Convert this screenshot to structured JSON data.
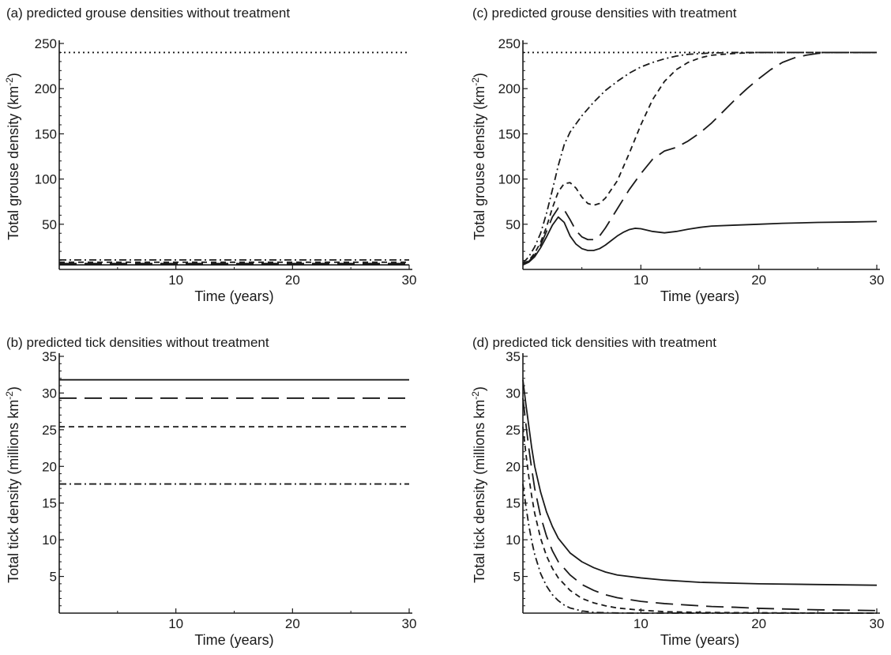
{
  "chart_data": [
    {
      "panel": "a",
      "type": "line",
      "title": "(a) predicted grouse densities without treatment",
      "xlabel": "Time (years)",
      "ylabel": "Total grouse density",
      "ylabel_unit_base": "(km",
      "ylabel_unit_sup": "-2",
      "ylabel_unit_end": ")",
      "xlim": [
        0,
        30
      ],
      "ylim": [
        0,
        250
      ],
      "xticks": [
        10,
        20,
        30
      ],
      "xticks_minor": [
        5,
        15,
        25
      ],
      "yticks": [
        50,
        100,
        150,
        200,
        250
      ],
      "yticks_minor": [
        10,
        20,
        30,
        40,
        60,
        70,
        80,
        90,
        110,
        120,
        130,
        140,
        160,
        170,
        180,
        190,
        210,
        220,
        230,
        240
      ],
      "series": [
        {
          "style": "dotted",
          "x": [
            0,
            30
          ],
          "y": [
            240,
            240
          ]
        },
        {
          "style": "dashdot",
          "x": [
            0,
            30
          ],
          "y": [
            10.5,
            10.5
          ]
        },
        {
          "style": "dashed",
          "x": [
            0,
            30
          ],
          "y": [
            8,
            8
          ]
        },
        {
          "style": "longdash",
          "x": [
            0,
            30
          ],
          "y": [
            6.5,
            6.5
          ]
        },
        {
          "style": "solid",
          "x": [
            0,
            30
          ],
          "y": [
            5,
            5
          ]
        }
      ]
    },
    {
      "panel": "c",
      "type": "line",
      "title": "(c) predicted grouse densities with treatment",
      "xlabel": "Time (years)",
      "ylabel": "Total grouse density",
      "ylabel_unit_base": "(km",
      "ylabel_unit_sup": "-2",
      "ylabel_unit_end": ")",
      "xlim": [
        0,
        30
      ],
      "ylim": [
        0,
        250
      ],
      "xticks": [
        10,
        20,
        30
      ],
      "xticks_minor": [
        5,
        15,
        25
      ],
      "yticks": [
        50,
        100,
        150,
        200,
        250
      ],
      "yticks_minor": [
        10,
        20,
        30,
        40,
        60,
        70,
        80,
        90,
        110,
        120,
        130,
        140,
        160,
        170,
        180,
        190,
        210,
        220,
        230,
        240
      ],
      "series": [
        {
          "style": "dotted",
          "x": [
            0,
            30
          ],
          "y": [
            240,
            240
          ]
        },
        {
          "style": "dashdot",
          "x": [
            0,
            0.5,
            1,
            1.5,
            2,
            2.5,
            3,
            3.5,
            4,
            5,
            6,
            7,
            8,
            9,
            10,
            11,
            12,
            13,
            14,
            16,
            18,
            20,
            25,
            30
          ],
          "y": [
            7,
            14,
            25,
            40,
            62,
            88,
            115,
            138,
            152,
            170,
            185,
            198,
            208,
            217,
            224,
            229,
            233,
            236,
            238,
            239.5,
            240,
            240,
            240,
            240
          ]
        },
        {
          "style": "dashed",
          "x": [
            0,
            0.5,
            1,
            1.5,
            2,
            2.5,
            3,
            3.5,
            4,
            4.5,
            5,
            5.5,
            6,
            6.5,
            7,
            8,
            9,
            10,
            11,
            12,
            13,
            14,
            15,
            16,
            18,
            20,
            25,
            30
          ],
          "y": [
            6,
            10,
            18,
            30,
            47,
            68,
            86,
            95,
            96,
            90,
            80,
            73,
            71,
            73,
            79,
            98,
            128,
            160,
            188,
            208,
            221,
            229,
            234,
            237,
            239,
            240,
            240,
            240
          ]
        },
        {
          "style": "longdash",
          "x": [
            0,
            0.5,
            1,
            1.5,
            2,
            2.5,
            3,
            3.5,
            4,
            4.5,
            5,
            5.5,
            6,
            6.5,
            7,
            8,
            9,
            10,
            11,
            12,
            13,
            14,
            15,
            16,
            17,
            18,
            19,
            20,
            21,
            22,
            23,
            24,
            25,
            26,
            28,
            30
          ],
          "y": [
            6,
            9,
            16,
            27,
            42,
            58,
            68,
            66,
            55,
            43,
            36,
            33,
            33,
            37,
            46,
            67,
            88,
            106,
            122,
            131,
            135,
            142,
            151,
            162,
            175,
            188,
            200,
            211,
            221,
            229,
            234,
            237,
            239,
            240,
            240,
            240
          ]
        },
        {
          "style": "solid",
          "x": [
            0,
            0.5,
            1,
            1.5,
            2,
            2.5,
            3,
            3.5,
            4,
            4.5,
            5,
            5.5,
            6,
            6.5,
            7,
            7.5,
            8,
            8.5,
            9,
            9.5,
            10,
            11,
            12,
            13,
            14,
            15,
            16,
            18,
            20,
            22,
            25,
            28,
            30
          ],
          "y": [
            5,
            8,
            14,
            24,
            36,
            49,
            58,
            52,
            37,
            28,
            23,
            21,
            21,
            23,
            27,
            32,
            37,
            41,
            44,
            45.5,
            45,
            42,
            40.5,
            42,
            44.5,
            46.5,
            48,
            49,
            50,
            51,
            52,
            52.5,
            53
          ]
        }
      ]
    },
    {
      "panel": "b",
      "type": "line",
      "title": "(b) predicted tick densities without treatment",
      "xlabel": "Time (years)",
      "ylabel": "Total tick density",
      "ylabel_unit_base": "(millions km",
      "ylabel_unit_sup": "-2",
      "ylabel_unit_end": ")",
      "xlim": [
        0,
        30
      ],
      "ylim": [
        0,
        35
      ],
      "xticks": [
        10,
        20,
        30
      ],
      "xticks_minor": [
        5,
        15,
        25
      ],
      "yticks": [
        5,
        10,
        15,
        20,
        25,
        30,
        35
      ],
      "yticks_minor": [
        1,
        2,
        3,
        4,
        6,
        7,
        8,
        9,
        11,
        12,
        13,
        14,
        16,
        17,
        18,
        19,
        21,
        22,
        23,
        24,
        26,
        27,
        28,
        29,
        31,
        32,
        33,
        34
      ],
      "series": [
        {
          "style": "solid",
          "x": [
            0,
            30
          ],
          "y": [
            31.8,
            31.8
          ]
        },
        {
          "style": "longdash",
          "x": [
            0,
            30
          ],
          "y": [
            29.3,
            29.3
          ]
        },
        {
          "style": "dashed",
          "x": [
            0,
            30
          ],
          "y": [
            25.4,
            25.4
          ]
        },
        {
          "style": "dashdot",
          "x": [
            0,
            30
          ],
          "y": [
            17.6,
            17.6
          ]
        }
      ]
    },
    {
      "panel": "d",
      "type": "line",
      "title": "(d) predicted tick densities with treatment",
      "xlabel": "Time (years)",
      "ylabel": "Total tick density",
      "ylabel_unit_base": "(millions km",
      "ylabel_unit_sup": "-2",
      "ylabel_unit_end": ")",
      "xlim": [
        0,
        30
      ],
      "ylim": [
        0,
        35
      ],
      "xticks": [
        10,
        20,
        30
      ],
      "xticks_minor": [
        5,
        15,
        25
      ],
      "yticks": [
        5,
        10,
        15,
        20,
        25,
        30,
        35
      ],
      "yticks_minor": [
        1,
        2,
        3,
        4,
        6,
        7,
        8,
        9,
        11,
        12,
        13,
        14,
        16,
        17,
        18,
        19,
        21,
        22,
        23,
        24,
        26,
        27,
        28,
        29,
        31,
        32,
        33,
        34
      ],
      "series": [
        {
          "style": "solid",
          "x": [
            0,
            0.25,
            0.5,
            0.75,
            1,
            1.5,
            2,
            2.5,
            3,
            4,
            5,
            6,
            7,
            8,
            10,
            12,
            15,
            20,
            25,
            30
          ],
          "y": [
            31.8,
            28.5,
            25.5,
            22.5,
            20,
            16.5,
            13.8,
            11.8,
            10.2,
            8.2,
            7,
            6.2,
            5.6,
            5.2,
            4.8,
            4.5,
            4.2,
            4,
            3.9,
            3.8
          ]
        },
        {
          "style": "longdash",
          "x": [
            0,
            0.25,
            0.5,
            0.75,
            1,
            1.5,
            2,
            2.5,
            3,
            4,
            5,
            6,
            7,
            8,
            10,
            12,
            14,
            16,
            18,
            20,
            25,
            30
          ],
          "y": [
            29.3,
            25.8,
            22.5,
            19.6,
            17,
            13.2,
            10.5,
            8.5,
            7,
            5.2,
            3.9,
            3.1,
            2.5,
            2.1,
            1.6,
            1.3,
            1.1,
            0.9,
            0.8,
            0.65,
            0.45,
            0.35
          ]
        },
        {
          "style": "dashed",
          "x": [
            0,
            0.25,
            0.5,
            0.75,
            1,
            1.5,
            2,
            2.5,
            3,
            4,
            5,
            6,
            7,
            8,
            10,
            12,
            15,
            20,
            25,
            30
          ],
          "y": [
            25.4,
            21.8,
            18.6,
            15.9,
            13.6,
            10.2,
            7.8,
            6.1,
            4.8,
            3.1,
            2,
            1.4,
            1,
            0.7,
            0.4,
            0.2,
            0.1,
            0.05,
            0.02,
            0
          ]
        },
        {
          "style": "dashdot",
          "x": [
            0,
            0.25,
            0.5,
            0.75,
            1,
            1.5,
            2,
            2.5,
            3,
            3.5,
            4,
            5,
            6,
            8,
            10,
            15,
            20,
            30
          ],
          "y": [
            17.6,
            14.6,
            12,
            9.8,
            8,
            5.4,
            3.7,
            2.5,
            1.7,
            1.1,
            0.7,
            0.3,
            0.1,
            0.02,
            0,
            0,
            0,
            0
          ]
        }
      ]
    }
  ]
}
